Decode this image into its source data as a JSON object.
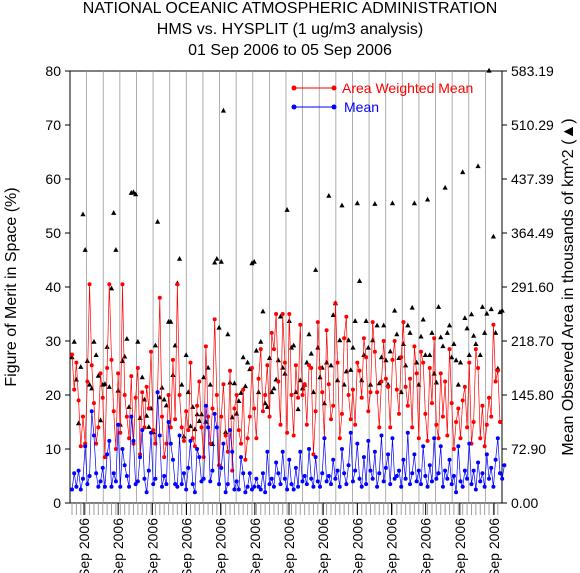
{
  "chart_data": {
    "type": "line",
    "title_lines": [
      "NATIONAL OCEANIC ATMOSPHERIC ADMINISTRATION",
      "HMS vs. HYSPLIT (1 ug/m3 analysis)",
      "01 Sep 2006 to 05 Sep 2006"
    ],
    "ylabel_left": "Figure of Merit in Space (%)",
    "ylabel_right": "Mean Observed Area in thousands of km^2 (▲)",
    "ylim_left": [
      0,
      80
    ],
    "ylim_right": [
      0.0,
      583.19
    ],
    "yticks_left": [
      "0",
      "10",
      "20",
      "30",
      "40",
      "50",
      "60",
      "70",
      "80"
    ],
    "yticks_right": [
      "0.00",
      "72.90",
      "145.80",
      "218.70",
      "291.60",
      "364.49",
      "437.39",
      "510.29",
      "583.19"
    ],
    "xtick_labels": [
      "Sep 2006",
      "Sep 2006",
      "Sep 2006",
      "Sep 2006",
      "Sep 2006",
      "Sep 2006",
      "Sep 2006",
      "Sep 2006",
      "Sep 2006",
      "Sep 2006",
      "Sep 2006",
      "Sep 2006",
      "Sep 2006"
    ],
    "grid": false,
    "legend_position": "top-right",
    "series": [
      {
        "name": "Area Weighted Mean",
        "color": "#ff0000",
        "marker": "circle",
        "values": [
          27.5,
          21.0,
          26.0,
          19.0,
          10.5,
          16.0,
          11.0,
          22.5,
          40.5,
          25.5,
          18.5,
          11.0,
          14.0,
          24.0,
          19.5,
          8.5,
          25.0,
          40.5,
          26.5,
          17.0,
          10.0,
          24.0,
          13.0,
          40.5,
          20.0,
          16.0,
          12.0,
          23.5,
          11.0,
          19.5,
          25.0,
          9.0,
          20.5,
          14.0,
          21.5,
          17.5,
          28.0,
          13.5,
          11.0,
          20.5,
          38.0,
          16.0,
          8.5,
          11.0,
          20.0,
          14.0,
          26.5,
          15.5,
          40.5,
          20.0,
          14.0,
          11.5,
          17.0,
          13.5,
          26.0,
          12.0,
          10.5,
          18.0,
          22.5,
          14.0,
          8.5,
          29.0,
          16.0,
          11.0,
          17.5,
          34.0,
          20.0,
          7.0,
          16.0,
          22.0,
          12.5,
          9.5,
          24.5,
          6.0,
          17.5,
          20.0,
          13.5,
          11.0,
          21.0,
          8.0,
          12.0,
          16.0,
          25.0,
          17.5,
          12.0,
          23.0,
          28.5,
          17.0,
          20.0,
          25.5,
          16.0,
          31.5,
          28.5,
          35.0,
          22.5,
          14.5,
          35.0,
          26.0,
          13.0,
          35.0,
          20.0,
          12.5,
          25.5,
          19.5,
          33.0,
          20.0,
          22.0,
          14.5,
          25.5,
          25.0,
          9.0,
          17.0,
          33.5,
          25.0,
          20.5,
          12.0,
          32.0,
          22.0,
          15.5,
          18.0,
          37.0,
          26.0,
          12.0,
          16.5,
          30.5,
          34.5,
          20.0,
          15.5,
          21.0,
          14.5,
          26.0,
          24.5,
          19.5,
          30.5,
          27.0,
          17.0,
          20.5,
          33.5,
          28.0,
          20.5,
          14.0,
          22.5,
          30.0,
          23.0,
          21.5,
          14.0,
          26.5,
          30.0,
          21.0,
          16.5,
          27.0,
          33.5,
          21.5,
          18.0,
          23.0,
          14.0,
          29.0,
          24.0,
          12.0,
          28.0,
          26.0,
          16.5,
          11.5,
          25.0,
          18.5,
          30.5,
          14.5,
          12.0,
          24.0,
          16.0,
          22.5,
          12.5,
          28.5,
          18.5,
          10.0,
          15.0,
          17.5,
          12.0,
          19.0,
          21.5,
          14.0,
          26.0,
          11.0,
          15.0,
          28.5,
          25.0,
          12.0,
          18.0,
          10.5,
          14.5,
          19.5,
          16.0,
          33.0,
          22.5,
          24.5,
          15.0
        ]
      },
      {
        "name": "Mean",
        "color": "#0000ff",
        "marker": "circle",
        "values": [
          2.5,
          5.5,
          3.0,
          6.0,
          2.5,
          4.5,
          10.5,
          3.5,
          5.0,
          17.0,
          12.5,
          5.5,
          3.0,
          4.0,
          6.5,
          3.0,
          9.0,
          11.5,
          3.0,
          5.5,
          4.0,
          14.5,
          3.0,
          10.0,
          7.0,
          5.0,
          3.0,
          16.0,
          11.5,
          3.5,
          4.0,
          8.5,
          13.5,
          4.5,
          2.0,
          6.0,
          13.0,
          3.5,
          4.5,
          20.5,
          12.5,
          3.0,
          5.0,
          3.5,
          15.0,
          11.0,
          8.0,
          3.5,
          3.0,
          12.5,
          3.5,
          5.5,
          2.5,
          6.5,
          11.5,
          3.5,
          2.0,
          10.0,
          8.5,
          4.0,
          4.5,
          18.0,
          14.0,
          4.0,
          6.0,
          16.5,
          14.0,
          3.5,
          6.5,
          11.0,
          2.0,
          3.5,
          13.5,
          9.5,
          2.5,
          4.0,
          2.5,
          8.5,
          5.5,
          2.0,
          3.0,
          5.5,
          2.5,
          3.0,
          4.5,
          3.0,
          2.5,
          5.5,
          2.0,
          9.5,
          3.5,
          4.5,
          3.0,
          7.5,
          5.5,
          3.5,
          9.5,
          4.5,
          2.5,
          8.0,
          3.5,
          2.5,
          6.5,
          3.0,
          9.5,
          4.0,
          5.0,
          3.5,
          10.0,
          4.5,
          3.0,
          8.5,
          4.0,
          3.0,
          5.5,
          12.0,
          4.0,
          5.0,
          3.5,
          8.0,
          4.5,
          6.0,
          3.0,
          10.0,
          5.5,
          3.5,
          7.0,
          13.0,
          4.0,
          6.0,
          11.0,
          4.5,
          3.0,
          8.5,
          3.5,
          11.5,
          6.0,
          4.5,
          9.5,
          3.0,
          5.5,
          12.5,
          4.0,
          6.5,
          9.0,
          3.5,
          12.0,
          4.5,
          5.0,
          6.0,
          3.0,
          8.0,
          4.5,
          13.0,
          3.5,
          5.5,
          9.0,
          4.0,
          6.0,
          3.5,
          10.5,
          5.0,
          3.0,
          7.0,
          4.0,
          12.0,
          4.5,
          5.5,
          10.5,
          3.0,
          6.0,
          4.5,
          8.0,
          3.5,
          5.0,
          2.0,
          10.5,
          4.0,
          3.0,
          6.0,
          4.5,
          11.0,
          3.5,
          6.0,
          2.5,
          7.5,
          4.0,
          5.5,
          3.0,
          9.0,
          4.5,
          6.5,
          3.0,
          8.0,
          12.0,
          5.5,
          4.5,
          7.0
        ]
      },
      {
        "name": "Mean Observed Area",
        "axis": "right",
        "marker": "triangle",
        "color": "#000000",
        "values": [
          197,
          218,
          167,
          108,
          184,
          390,
          342,
          192,
          160,
          155,
          218,
          200,
          172,
          112,
          160,
          161,
          211,
          157,
          290,
          392,
          342,
          152,
          106,
          192,
          198,
          222,
          130,
          419,
          420,
          417,
          218,
          115,
          170,
          140,
          118,
          103,
          128,
          96,
          213,
          380,
          143,
          156,
          140,
          132,
          245,
          245,
          173,
          213,
          297,
          330,
          160,
          90,
          200,
          150,
          104,
          130,
          100,
          120,
          111,
          120,
          170,
          110,
          183,
          160,
          80,
          325,
          330,
          237,
          326,
          530,
          96,
          228,
          163,
          116,
          162,
          121,
          138,
          149,
          197,
          158,
          190,
          181,
          324,
          326,
          206,
          150,
          218,
          259,
          135,
          130,
          196,
          150,
          155,
          167,
          193,
          252,
          183,
          175,
          396,
          246,
          210,
          213,
          150,
          127,
          166,
          155,
          160,
          190,
          228,
          202,
          150,
          315,
          210,
          170,
          183,
          135,
          190,
          415,
          186,
          254,
          270,
          166,
          220,
          402,
          160,
          178,
          220,
          180,
          210,
          246,
          405,
          300,
          166,
          200,
          246,
          210,
          160,
          220,
          404,
          240,
          162,
          197,
          240,
          193,
          160,
          205,
          405,
          260,
          228,
          196,
          150,
          215,
          186,
          240,
          230,
          264,
          405,
          190,
          160,
          225,
          248,
          200,
          410,
          200,
          230,
          175,
          163,
          265,
          224,
          212,
          426,
          230,
          240,
          197,
          215,
          193,
          160,
          190,
          447,
          250,
          236,
          200,
          255,
          226,
          215,
          455,
          200,
          265,
          230,
          256,
          584,
          262,
          360,
          230,
          182,
          258,
          260
        ]
      }
    ]
  }
}
